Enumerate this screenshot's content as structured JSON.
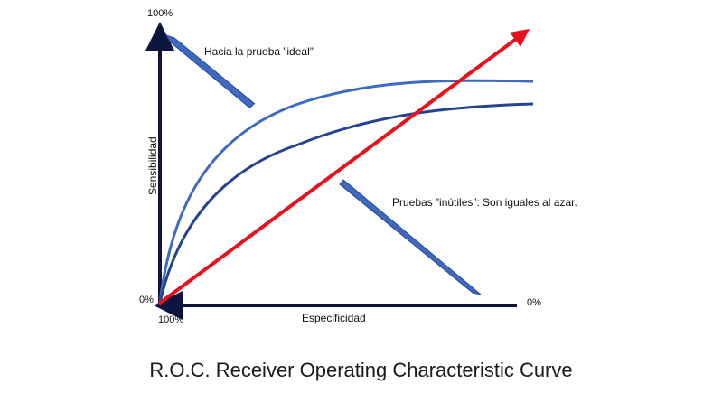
{
  "axes": {
    "y_top_label": "100%",
    "y_bottom_label": "0%",
    "x_left_label": "100%",
    "x_right_label": "0%",
    "y_axis_title": "Sensibilidad",
    "x_axis_title": "Especificidad"
  },
  "annotations": {
    "ideal": "Hacia la prueba ”ideal”",
    "useless": "Pruebas ”inútiles”: Son iguales al azar."
  },
  "title": "R.O.C.  Receiver Operating Characteristic Curve",
  "colors": {
    "axis": "#0d1440",
    "curve_upper": "#3d6bc4",
    "curve_lower": "#25448f",
    "diagonal": "#e8101a",
    "arrow_fill": "#3f68c0",
    "arrow_stroke": "#2a4a94"
  }
}
